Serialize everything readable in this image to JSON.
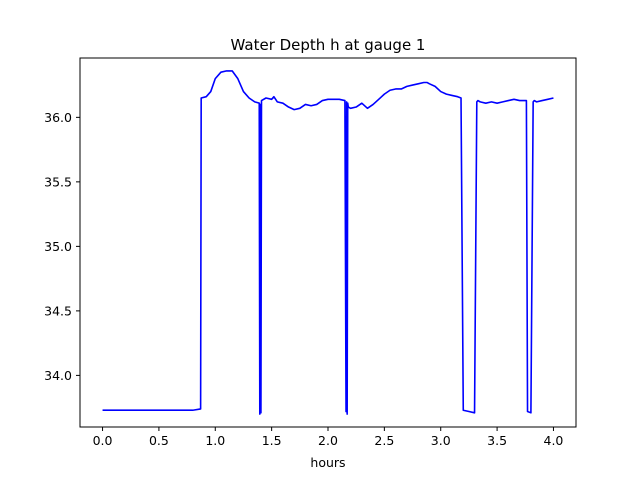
{
  "chart_data": {
    "type": "line",
    "title": "Water Depth h at gauge 1",
    "xlabel": "hours",
    "ylabel": "",
    "xlim": [
      -0.2,
      4.2
    ],
    "ylim": [
      33.6,
      36.46
    ],
    "xticks": [
      0.0,
      0.5,
      1.0,
      1.5,
      2.0,
      2.5,
      3.0,
      3.5,
      4.0
    ],
    "xtick_labels": [
      "0.0",
      "0.5",
      "1.0",
      "1.5",
      "2.0",
      "2.5",
      "3.0",
      "3.5",
      "4.0"
    ],
    "yticks": [
      34.0,
      34.5,
      35.0,
      35.5,
      36.0
    ],
    "ytick_labels": [
      "34.0",
      "34.5",
      "35.0",
      "35.5",
      "36.0"
    ],
    "grid": false,
    "legend": "none",
    "series": [
      {
        "color": "#0000ff",
        "x": [
          0.0,
          0.2,
          0.4,
          0.6,
          0.8,
          0.87,
          0.875,
          0.92,
          0.96,
          1.0,
          1.05,
          1.1,
          1.15,
          1.2,
          1.25,
          1.3,
          1.35,
          1.39,
          1.395,
          1.4,
          1.405,
          1.41,
          1.45,
          1.5,
          1.52,
          1.55,
          1.6,
          1.65,
          1.7,
          1.75,
          1.8,
          1.85,
          1.9,
          1.95,
          2.0,
          2.05,
          2.1,
          2.15,
          2.16,
          2.165,
          2.17,
          2.175,
          2.18,
          2.2,
          2.25,
          2.3,
          2.35,
          2.4,
          2.45,
          2.5,
          2.55,
          2.6,
          2.65,
          2.7,
          2.75,
          2.8,
          2.85,
          2.88,
          2.9,
          2.95,
          3.0,
          3.05,
          3.1,
          3.15,
          3.18,
          3.2,
          3.25,
          3.3,
          3.32,
          3.33,
          3.35,
          3.4,
          3.45,
          3.5,
          3.55,
          3.6,
          3.65,
          3.7,
          3.76,
          3.77,
          3.8,
          3.82,
          3.83,
          3.85,
          3.9,
          3.95,
          4.0
        ],
        "y": [
          33.73,
          33.73,
          33.73,
          33.73,
          33.73,
          33.74,
          36.15,
          36.16,
          36.2,
          36.3,
          36.35,
          36.36,
          36.36,
          36.3,
          36.2,
          36.15,
          36.12,
          36.11,
          33.7,
          36.1,
          33.71,
          36.13,
          36.15,
          36.14,
          36.16,
          36.12,
          36.11,
          36.08,
          36.06,
          36.07,
          36.1,
          36.09,
          36.1,
          36.13,
          36.14,
          36.14,
          36.14,
          36.13,
          33.72,
          36.12,
          33.7,
          36.11,
          36.08,
          36.07,
          36.08,
          36.11,
          36.07,
          36.1,
          36.14,
          36.18,
          36.21,
          36.22,
          36.22,
          36.24,
          36.25,
          36.26,
          36.27,
          36.27,
          36.26,
          36.24,
          36.2,
          36.18,
          36.17,
          36.16,
          36.15,
          33.73,
          33.72,
          33.71,
          36.12,
          36.13,
          36.12,
          36.11,
          36.12,
          36.11,
          36.12,
          36.13,
          36.14,
          36.13,
          36.13,
          33.72,
          33.71,
          36.12,
          36.13,
          36.12,
          36.13,
          36.14,
          36.15
        ]
      }
    ]
  }
}
